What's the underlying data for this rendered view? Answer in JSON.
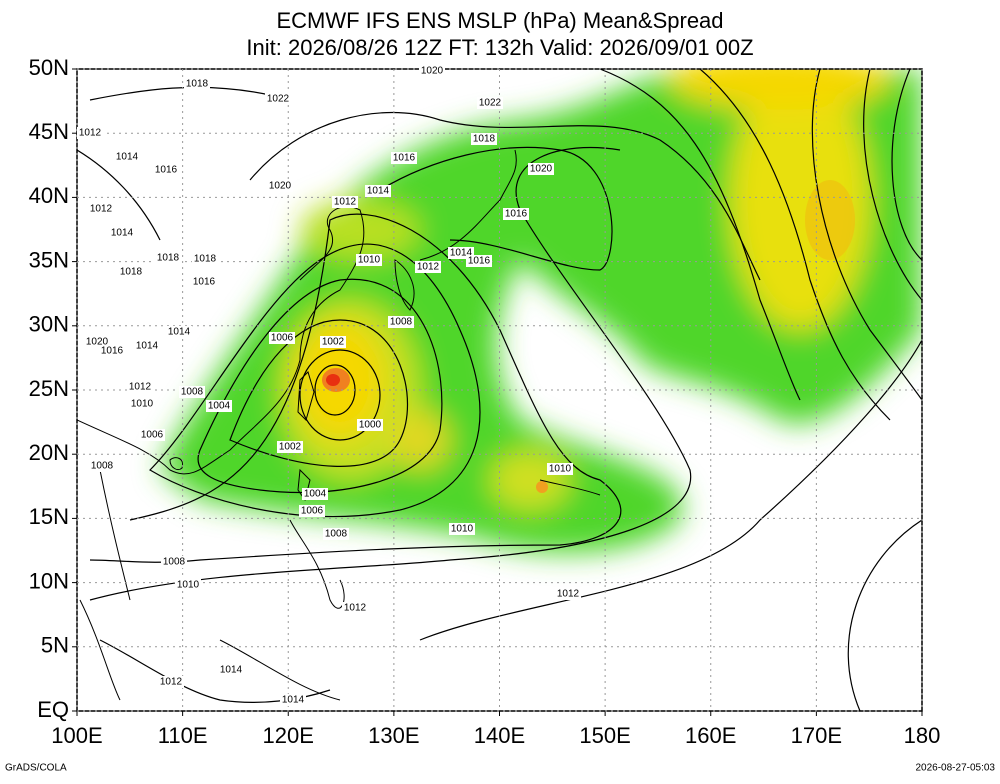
{
  "title": [
    "ECMWF IFS ENS MSLP (hPa) Mean&Spread",
    "Init: 2026/08/26 12Z  FT: 132h  Valid: 2026/09/01 00Z"
  ],
  "map": {
    "xlim": [
      100,
      180
    ],
    "ylim": [
      0,
      50
    ],
    "xticks": [
      {
        "value": 100,
        "label": "100E"
      },
      {
        "value": 110,
        "label": "110E"
      },
      {
        "value": 120,
        "label": "120E"
      },
      {
        "value": 130,
        "label": "130E"
      },
      {
        "value": 140,
        "label": "140E"
      },
      {
        "value": 150,
        "label": "150E"
      },
      {
        "value": 160,
        "label": "160E"
      },
      {
        "value": 170,
        "label": "170E"
      },
      180
    ],
    "yticks": [
      {
        "value": 0,
        "label": "EQ"
      },
      {
        "value": 5,
        "label": "5N"
      },
      {
        "value": 10,
        "label": "10N"
      },
      {
        "value": 15,
        "label": "15N"
      },
      {
        "value": 20,
        "label": "20N"
      },
      {
        "value": 25,
        "label": "25N"
      },
      {
        "value": 30,
        "label": "30N"
      },
      {
        "value": 35,
        "label": "35N"
      },
      {
        "value": 40,
        "label": "40N"
      },
      {
        "value": 45,
        "label": "45N"
      },
      {
        "value": 50,
        "label": "50N"
      }
    ],
    "grid": true,
    "contour_labels": [
      1020,
      1018,
      1022,
      1022,
      1012,
      1018,
      1014,
      1016,
      1016,
      1020,
      1020,
      1014,
      1012,
      1012,
      1016,
      1014,
      1014,
      1016,
      1018,
      1018,
      1010,
      1012,
      1018,
      1016,
      1008,
      1014,
      1006,
      1002,
      1020,
      1016,
      1014,
      1012,
      1008,
      1010,
      1004,
      1000,
      1006,
      1002,
      1008,
      1010,
      1004,
      1006,
      1010,
      1008,
      1008,
      1010,
      1012,
      1012,
      1014,
      1012,
      1014
    ]
  },
  "footer": {
    "left": "GrADS/COLA",
    "right": "2026-08-27-05:03"
  }
}
